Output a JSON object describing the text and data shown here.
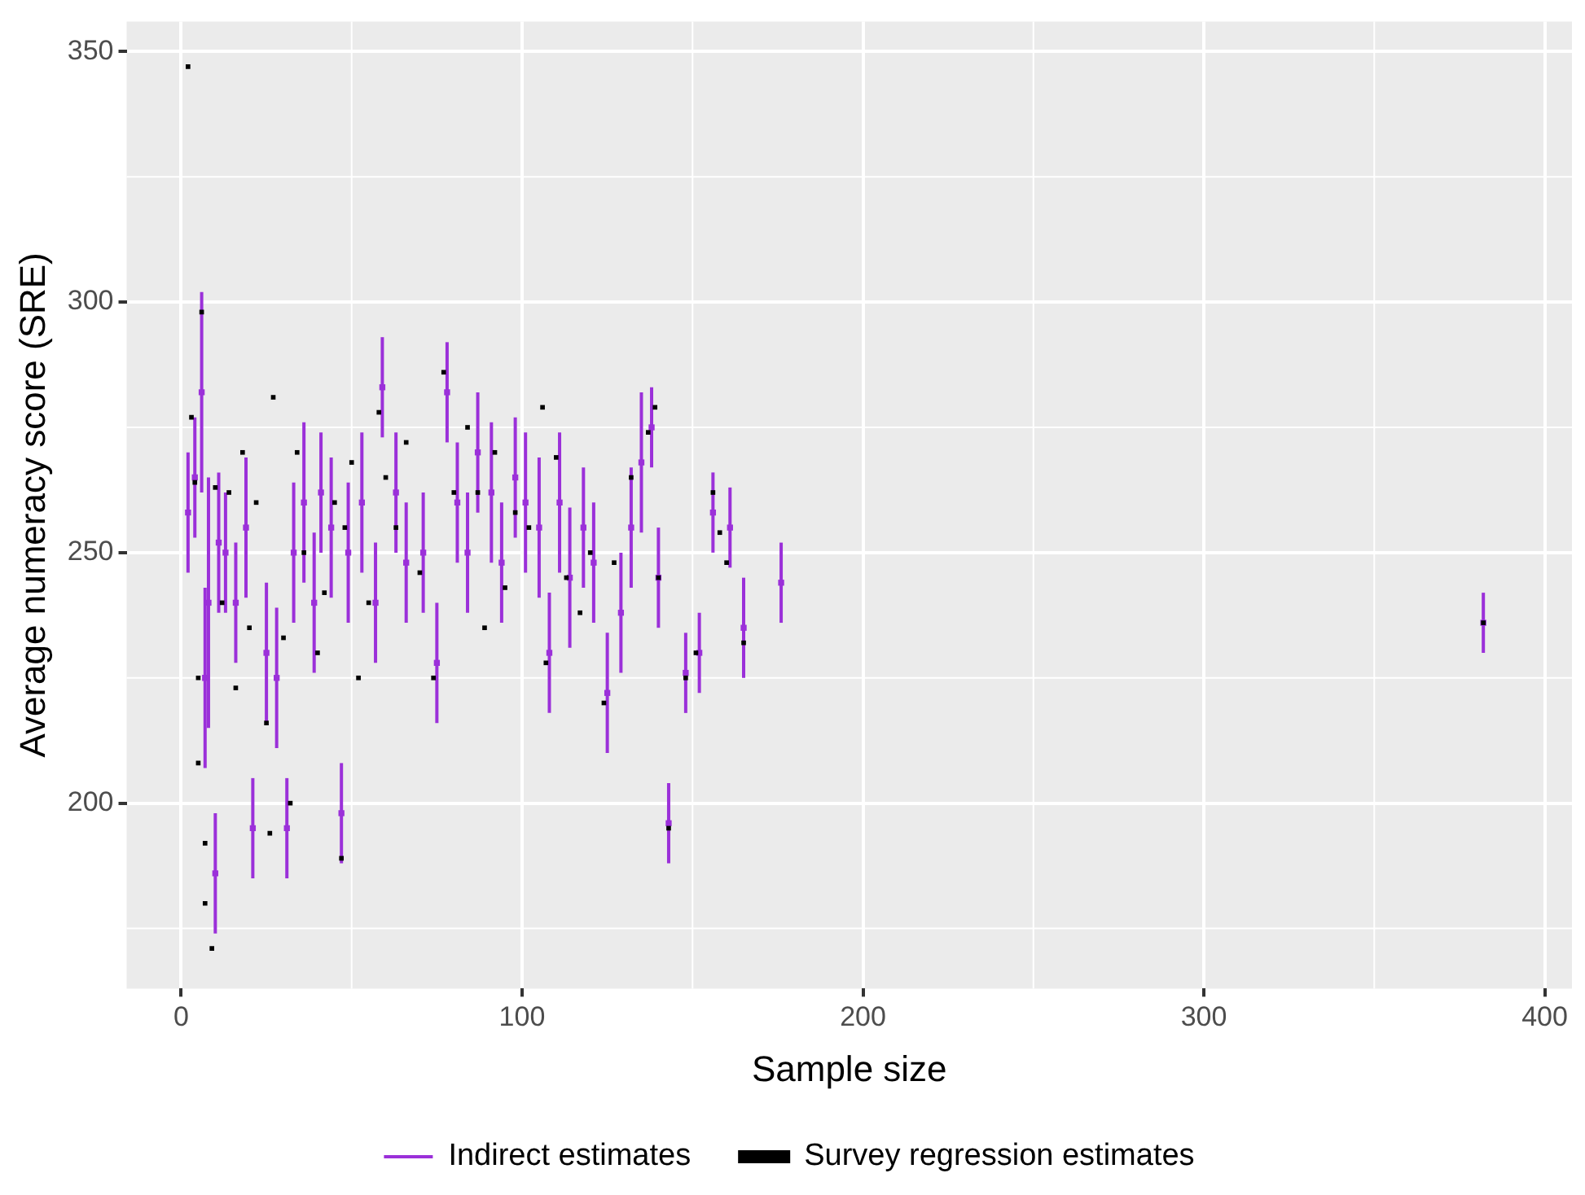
{
  "chart_data": {
    "type": "scatter",
    "xlabel": "Sample size",
    "ylabel": "Average numeracy score (SRE)",
    "xlim": [
      -16,
      408
    ],
    "ylim": [
      163,
      356
    ],
    "xticks": [
      0,
      100,
      200,
      300,
      400
    ],
    "yticks": [
      200,
      250,
      300,
      350
    ],
    "grid": true,
    "legend": "bottom",
    "marker": "square",
    "series": [
      {
        "name": "Indirect estimates",
        "color": "#9b30d9",
        "x": [
          2,
          4,
          6,
          7,
          8,
          10,
          11,
          13,
          16,
          19,
          21,
          25,
          28,
          31,
          33,
          36,
          39,
          41,
          44,
          47,
          49,
          53,
          57,
          59,
          63,
          66,
          71,
          75,
          78,
          81,
          84,
          87,
          91,
          94,
          98,
          101,
          105,
          108,
          111,
          114,
          118,
          121,
          125,
          129,
          132,
          135,
          138,
          140,
          143,
          148,
          152,
          156,
          161,
          165,
          176,
          382
        ],
        "values": [
          258,
          265,
          282,
          225,
          240,
          186,
          252,
          250,
          240,
          255,
          195,
          230,
          225,
          195,
          250,
          260,
          240,
          262,
          255,
          198,
          250,
          260,
          240,
          283,
          262,
          248,
          250,
          228,
          282,
          260,
          250,
          270,
          262,
          248,
          265,
          260,
          255,
          230,
          260,
          245,
          255,
          248,
          222,
          238,
          255,
          268,
          275,
          245,
          196,
          226,
          230,
          258,
          255,
          235,
          244,
          236
        ],
        "errors": [
          12,
          12,
          20,
          18,
          25,
          12,
          14,
          12,
          12,
          14,
          10,
          14,
          14,
          10,
          14,
          16,
          14,
          12,
          14,
          10,
          14,
          14,
          12,
          10,
          12,
          12,
          12,
          12,
          10,
          12,
          12,
          12,
          14,
          12,
          12,
          14,
          14,
          12,
          14,
          14,
          12,
          12,
          12,
          12,
          12,
          14,
          8,
          10,
          8,
          8,
          8,
          8,
          8,
          10,
          8,
          6
        ]
      },
      {
        "name": "Survey regression estimates",
        "color": "#000000",
        "x": [
          2,
          3,
          4,
          5,
          5,
          6,
          7,
          7,
          9,
          10,
          12,
          14,
          16,
          18,
          20,
          22,
          25,
          26,
          27,
          30,
          32,
          34,
          36,
          40,
          42,
          45,
          47,
          48,
          50,
          52,
          55,
          58,
          60,
          63,
          66,
          70,
          74,
          77,
          80,
          84,
          87,
          89,
          92,
          95,
          98,
          102,
          106,
          107,
          110,
          113,
          117,
          120,
          124,
          127,
          132,
          137,
          139,
          140,
          143,
          148,
          151,
          156,
          158,
          160,
          165,
          382
        ],
        "values": [
          347,
          277,
          264,
          208,
          225,
          298,
          192,
          180,
          171,
          263,
          240,
          262,
          223,
          270,
          235,
          260,
          216,
          194,
          281,
          233,
          200,
          270,
          250,
          230,
          242,
          260,
          189,
          255,
          268,
          225,
          240,
          278,
          265,
          255,
          272,
          246,
          225,
          286,
          262,
          275,
          262,
          235,
          270,
          243,
          258,
          255,
          279,
          228,
          269,
          245,
          238,
          250,
          220,
          248,
          265,
          274,
          279,
          245,
          195,
          225,
          230,
          262,
          254,
          248,
          232,
          236
        ]
      }
    ]
  }
}
